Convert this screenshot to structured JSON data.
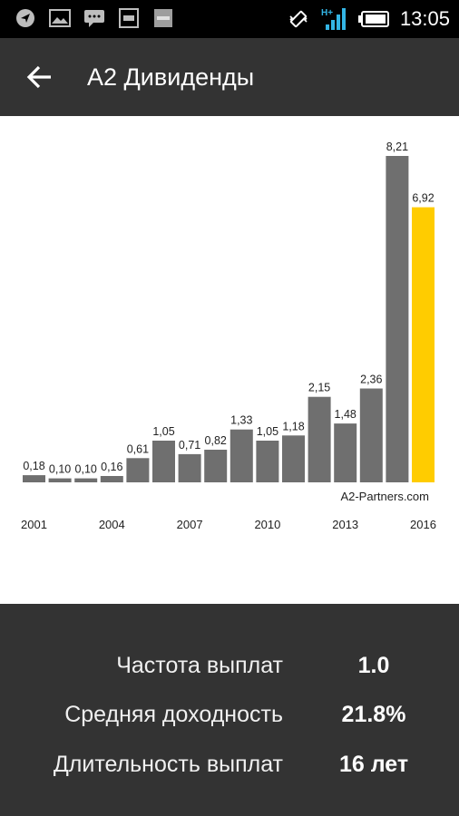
{
  "status_bar": {
    "time": "13:05",
    "left_icons": [
      "navigation-icon",
      "image-icon",
      "message-icon",
      "inv-app-icon",
      "sms-app-icon"
    ],
    "right_icons": [
      "vibrate-icon",
      "signal-icon",
      "battery-icon"
    ],
    "signal_text": "H+"
  },
  "app_bar": {
    "title": "А2 Дивиденды"
  },
  "chart": {
    "watermark": "A2-Partners.com",
    "colors": {
      "bar": "#6f6f6f",
      "highlight": "#ffcc00",
      "text": "#222222"
    }
  },
  "chart_data": {
    "type": "bar",
    "categories": [
      "2001",
      "2002",
      "2003",
      "2004",
      "2005",
      "2006",
      "2007",
      "2008",
      "2009",
      "2010",
      "2011",
      "2012",
      "2013",
      "2014",
      "2015",
      "2016"
    ],
    "values": [
      0.18,
      0.1,
      0.1,
      0.16,
      0.61,
      1.05,
      0.71,
      0.82,
      1.33,
      1.05,
      1.18,
      2.15,
      1.48,
      2.36,
      8.21,
      6.92
    ],
    "value_labels": [
      "0,18",
      "0,10",
      "0,10",
      "0,16",
      "0,61",
      "1,05",
      "0,71",
      "0,82",
      "1,33",
      "1,05",
      "1,18",
      "2,15",
      "1,48",
      "2,36",
      "8,21",
      "6,92"
    ],
    "x_tick_labels": [
      "2001",
      "2004",
      "2007",
      "2010",
      "2013",
      "2016"
    ],
    "x_tick_indices": [
      0,
      3,
      6,
      9,
      12,
      15
    ],
    "highlight_index": 15,
    "ylim": [
      0,
      8.21
    ],
    "title": "",
    "xlabel": "",
    "ylabel": "",
    "grid": false
  },
  "stats": [
    {
      "label": "Частота выплат",
      "value": "1.0"
    },
    {
      "label": "Средняя доходность",
      "value": "21.8%"
    },
    {
      "label": "Длительность выплат",
      "value": "16 лет"
    }
  ]
}
